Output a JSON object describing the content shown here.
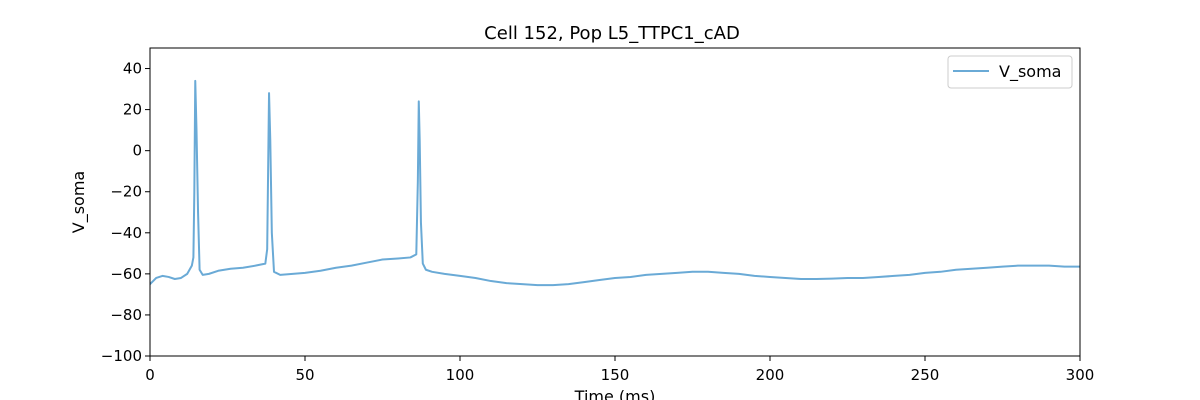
{
  "chart_data": {
    "type": "line",
    "title": "Cell 152, Pop L5_TTPC1_cAD",
    "xlabel": "Time (ms)",
    "ylabel": "V_soma",
    "xlim": [
      0,
      300
    ],
    "ylim": [
      -100,
      50
    ],
    "xticks": [
      0,
      50,
      100,
      150,
      200,
      250,
      300
    ],
    "yticks": [
      -100,
      -80,
      -60,
      -40,
      -20,
      0,
      20,
      40
    ],
    "grid": false,
    "legend_position": "top-right",
    "series": [
      {
        "name": "V_soma",
        "color": "#6aaad6",
        "x": [
          0,
          2,
          4,
          6,
          8,
          10,
          12,
          13.5,
          14,
          14.3,
          14.6,
          15,
          15.5,
          16,
          17,
          19,
          22,
          26,
          30,
          34,
          37.2,
          37.8,
          38.1,
          38.4,
          38.8,
          39.3,
          40,
          42,
          46,
          50,
          55,
          60,
          65,
          70,
          75,
          80,
          84,
          85.9,
          86.4,
          86.7,
          87,
          87.4,
          88,
          89,
          91,
          95,
          100,
          105,
          110,
          115,
          120,
          125,
          130,
          135,
          140,
          145,
          150,
          155,
          160,
          165,
          170,
          175,
          180,
          185,
          190,
          195,
          200,
          205,
          210,
          215,
          220,
          225,
          230,
          235,
          240,
          245,
          250,
          255,
          260,
          265,
          270,
          275,
          280,
          285,
          290,
          295,
          300
        ],
        "y": [
          -65,
          -62,
          -61,
          -61.5,
          -62.5,
          -62,
          -60,
          -56,
          -52,
          -20,
          34,
          10,
          -30,
          -58,
          -60.5,
          -60,
          -58.5,
          -57.5,
          -57,
          -56,
          -55,
          -48,
          -10,
          28,
          5,
          -40,
          -59,
          -60.5,
          -60,
          -59.5,
          -58.5,
          -57,
          -56,
          -54.5,
          -53,
          -52.5,
          -52,
          -50.5,
          -15,
          24,
          5,
          -35,
          -55,
          -58,
          -59,
          -60,
          -61,
          -62,
          -63.5,
          -64.5,
          -65,
          -65.5,
          -65.5,
          -65,
          -64,
          -63,
          -62,
          -61.5,
          -60.5,
          -60,
          -59.5,
          -59,
          -59,
          -59.5,
          -60,
          -61,
          -61.5,
          -62,
          -62.5,
          -62.5,
          -62.3,
          -62,
          -62,
          -61.5,
          -61,
          -60.5,
          -59.5,
          -59,
          -58,
          -57.5,
          -57,
          -56.5,
          -56,
          -56,
          -56,
          -56.5,
          -56.5
        ]
      }
    ]
  }
}
